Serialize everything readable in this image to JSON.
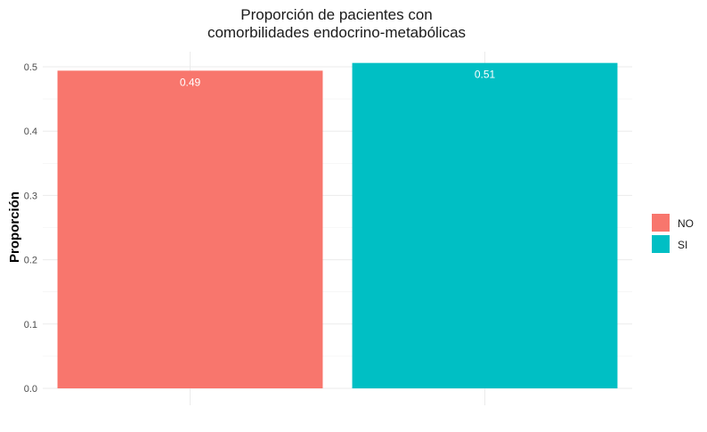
{
  "chart_data": {
    "type": "bar",
    "title_line1": "Proporción de pacientes con",
    "title_line2": "comorbilidades endocrino-metabólicas",
    "xlabel": "",
    "ylabel": "Proporción",
    "categories": [
      "NO",
      "SI"
    ],
    "values": [
      0.494,
      0.506
    ],
    "data_labels": [
      "0.49",
      "0.51"
    ],
    "colors": [
      "#F8766D",
      "#00BFC4"
    ],
    "ylim": [
      0,
      0.5
    ],
    "yticks": [
      "0.0",
      "0.1",
      "0.2",
      "0.3",
      "0.4",
      "0.5"
    ],
    "grid": true,
    "legend": {
      "position": "right",
      "entries": [
        "NO",
        "SI"
      ]
    }
  }
}
